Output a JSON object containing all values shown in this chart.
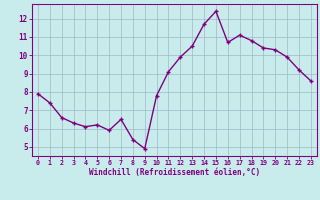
{
  "x": [
    0,
    1,
    2,
    3,
    4,
    5,
    6,
    7,
    8,
    9,
    10,
    11,
    12,
    13,
    14,
    15,
    16,
    17,
    18,
    19,
    20,
    21,
    22,
    23
  ],
  "y": [
    7.9,
    7.4,
    6.6,
    6.3,
    6.1,
    6.2,
    5.9,
    6.5,
    5.4,
    4.9,
    7.8,
    9.1,
    9.9,
    10.5,
    11.7,
    12.4,
    10.7,
    11.1,
    10.8,
    10.4,
    10.3,
    9.9,
    9.2,
    8.6
  ],
  "line_color": "#800080",
  "marker": "+",
  "marker_size": 3.5,
  "marker_lw": 1.0,
  "background_color": "#c8ecec",
  "grid_color": "#a0b8c8",
  "xlabel": "Windchill (Refroidissement éolien,°C)",
  "xlabel_color": "#800080",
  "tick_color": "#800080",
  "ylim": [
    4.5,
    12.8
  ],
  "xlim": [
    -0.5,
    23.5
  ],
  "yticks": [
    5,
    6,
    7,
    8,
    9,
    10,
    11,
    12
  ],
  "xticks": [
    0,
    1,
    2,
    3,
    4,
    5,
    6,
    7,
    8,
    9,
    10,
    11,
    12,
    13,
    14,
    15,
    16,
    17,
    18,
    19,
    20,
    21,
    22,
    23
  ],
  "spine_color": "#800080",
  "fig_bg": "#c8ecec",
  "line_width": 1.0
}
